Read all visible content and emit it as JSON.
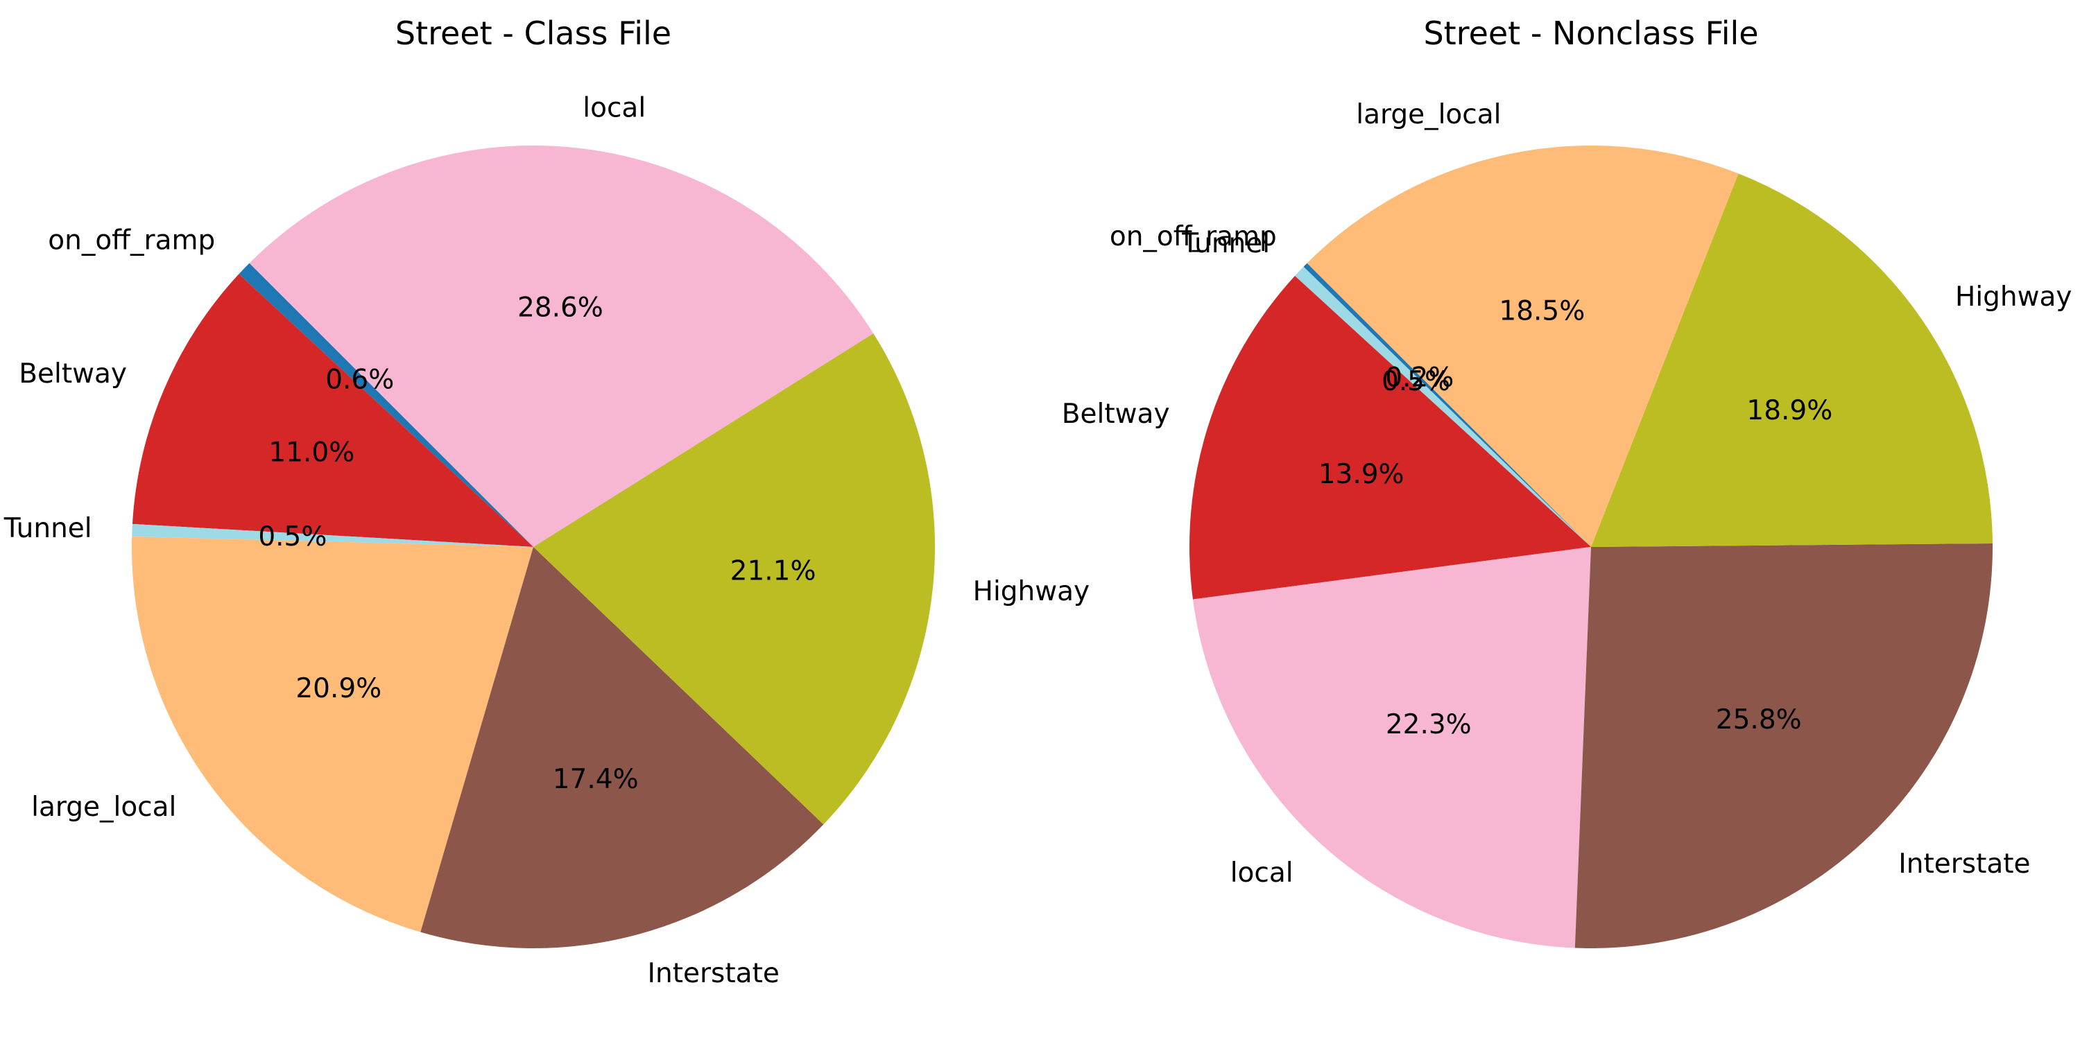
{
  "chart_data": [
    {
      "type": "pie",
      "title": "Street - Class File",
      "slices": [
        {
          "label": "on_off_ramp",
          "value": 0.6,
          "display": "0.6%",
          "color": "#1f77b4"
        },
        {
          "label": "Beltway",
          "value": 11.0,
          "display": "11.0%",
          "color": "#d62728"
        },
        {
          "label": "Tunnel",
          "value": 0.5,
          "display": "0.5%",
          "color": "#9edae5"
        },
        {
          "label": "large_local",
          "value": 20.9,
          "display": "20.9%",
          "color": "#ffbb78"
        },
        {
          "label": "Interstate",
          "value": 17.4,
          "display": "17.4%",
          "color": "#8c564b"
        },
        {
          "label": "Highway",
          "value": 21.1,
          "display": "21.1%",
          "color": "#bcbd22"
        },
        {
          "label": "local",
          "value": 28.6,
          "display": "28.6%",
          "color": "#f7b6d2"
        }
      ]
    },
    {
      "type": "pie",
      "title": "Street - Nonclass File",
      "slices": [
        {
          "label": "on_off_ramp",
          "value": 0.2,
          "display": "0.2%",
          "color": "#1f77b4"
        },
        {
          "label": "Tunnel",
          "value": 0.5,
          "display": "0.5%",
          "color": "#9edae5"
        },
        {
          "label": "Beltway",
          "value": 13.9,
          "display": "13.9%",
          "color": "#d62728"
        },
        {
          "label": "local",
          "value": 22.3,
          "display": "22.3%",
          "color": "#f7b6d2"
        },
        {
          "label": "Interstate",
          "value": 25.8,
          "display": "25.8%",
          "color": "#8c564b"
        },
        {
          "label": "Highway",
          "value": 18.9,
          "display": "18.9%",
          "color": "#bcbd22"
        },
        {
          "label": "large_local",
          "value": 18.5,
          "display": "18.5%",
          "color": "#ffbb78"
        }
      ]
    }
  ]
}
